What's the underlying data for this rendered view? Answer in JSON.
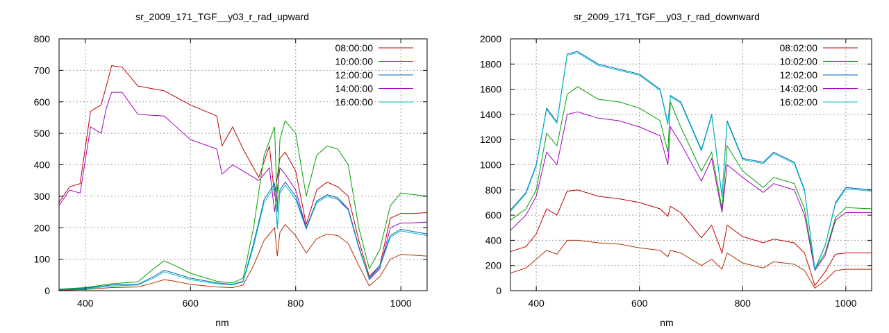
{
  "chart_data": [
    {
      "type": "line",
      "title": "sr_2009_171_TGF__y03_r_rad_upward",
      "xlabel": "nm",
      "ylabel": "",
      "xlim": [
        350,
        1050
      ],
      "ylim": [
        0,
        800
      ],
      "xticks": [
        400,
        600,
        800,
        1000
      ],
      "yticks": [
        0,
        100,
        200,
        300,
        400,
        500,
        600,
        700,
        800
      ],
      "grid": true,
      "legend_position": "top-right",
      "series": [
        {
          "name": "08:00:00",
          "color": "#c00000",
          "x": [
            350,
            370,
            390,
            410,
            430,
            440,
            450,
            470,
            500,
            550,
            600,
            650,
            660,
            680,
            700,
            730,
            750,
            760,
            770,
            780,
            800,
            820,
            840,
            860,
            880,
            900,
            920,
            940,
            960,
            980,
            1000,
            1020,
            1050
          ],
          "y": [
            280,
            330,
            340,
            570,
            590,
            650,
            715,
            710,
            650,
            635,
            590,
            555,
            460,
            520,
            450,
            360,
            460,
            300,
            420,
            440,
            380,
            210,
            320,
            345,
            330,
            300,
            160,
            45,
            80,
            230,
            245,
            245,
            248
          ]
        },
        {
          "name": "10:00:00",
          "color": "#00a000",
          "x": [
            350,
            400,
            450,
            500,
            530,
            550,
            570,
            600,
            650,
            680,
            700,
            720,
            740,
            760,
            765,
            770,
            780,
            800,
            820,
            840,
            860,
            880,
            900,
            920,
            940,
            960,
            980,
            1000,
            1050
          ],
          "y": [
            5,
            10,
            22,
            28,
            70,
            95,
            80,
            55,
            30,
            25,
            40,
            200,
            430,
            520,
            250,
            480,
            540,
            500,
            300,
            430,
            460,
            450,
            400,
            200,
            70,
            130,
            270,
            310,
            300
          ]
        },
        {
          "name": "12:00:00",
          "color": "#0060c0",
          "x": [
            350,
            400,
            450,
            500,
            530,
            550,
            570,
            600,
            650,
            680,
            700,
            720,
            740,
            760,
            765,
            770,
            780,
            800,
            820,
            840,
            860,
            880,
            900,
            920,
            940,
            960,
            980,
            1000,
            1050
          ],
          "y": [
            3,
            8,
            18,
            20,
            45,
            65,
            55,
            40,
            25,
            20,
            30,
            150,
            290,
            340,
            200,
            320,
            345,
            300,
            200,
            285,
            305,
            295,
            260,
            140,
            40,
            80,
            175,
            195,
            180
          ]
        },
        {
          "name": "14:00:00",
          "color": "#a000c0",
          "x": [
            350,
            370,
            390,
            410,
            430,
            440,
            450,
            470,
            500,
            550,
            600,
            650,
            660,
            680,
            700,
            730,
            750,
            760,
            770,
            780,
            800,
            820,
            840,
            860,
            880,
            900,
            920,
            940,
            960,
            980,
            1000,
            1020,
            1050
          ],
          "y": [
            270,
            320,
            310,
            520,
            500,
            580,
            630,
            630,
            560,
            555,
            480,
            450,
            370,
            400,
            380,
            350,
            390,
            250,
            390,
            370,
            320,
            200,
            280,
            300,
            290,
            260,
            140,
            35,
            70,
            200,
            215,
            215,
            218
          ]
        },
        {
          "name": "16:00:00",
          "color": "#00c0c0",
          "x": [
            350,
            400,
            450,
            500,
            530,
            550,
            570,
            600,
            650,
            680,
            700,
            720,
            740,
            760,
            765,
            770,
            780,
            800,
            820,
            840,
            860,
            880,
            900,
            920,
            940,
            960,
            980,
            1000,
            1050
          ],
          "y": [
            2,
            6,
            15,
            18,
            40,
            60,
            50,
            35,
            22,
            18,
            28,
            140,
            280,
            330,
            195,
            310,
            335,
            290,
            195,
            280,
            300,
            290,
            255,
            135,
            38,
            75,
            170,
            190,
            175
          ]
        },
        {
          "name": "",
          "color": "#b03000",
          "x": [
            350,
            400,
            450,
            500,
            530,
            550,
            570,
            600,
            650,
            680,
            700,
            720,
            740,
            760,
            765,
            770,
            780,
            800,
            820,
            840,
            860,
            880,
            900,
            920,
            940,
            960,
            980,
            1000,
            1050
          ],
          "y": [
            1,
            4,
            10,
            12,
            25,
            35,
            30,
            20,
            12,
            10,
            18,
            80,
            160,
            200,
            110,
            185,
            210,
            175,
            120,
            165,
            180,
            175,
            150,
            80,
            15,
            45,
            100,
            115,
            110
          ]
        }
      ]
    },
    {
      "type": "line",
      "title": "sr_2009_171_TGF__y03_r_rad_downward",
      "xlabel": "nm",
      "ylabel": "",
      "xlim": [
        350,
        1050
      ],
      "ylim": [
        0,
        2000
      ],
      "xticks": [
        400,
        600,
        800,
        1000
      ],
      "yticks": [
        0,
        200,
        400,
        600,
        800,
        1000,
        1200,
        1400,
        1600,
        1800,
        2000
      ],
      "grid": true,
      "legend_position": "top-right",
      "series": [
        {
          "name": "08:02:00",
          "color": "#c00000",
          "x": [
            350,
            380,
            400,
            420,
            440,
            460,
            480,
            520,
            560,
            600,
            640,
            655,
            660,
            680,
            720,
            740,
            760,
            770,
            800,
            840,
            860,
            900,
            920,
            940,
            960,
            980,
            1000,
            1050
          ],
          "y": [
            310,
            350,
            450,
            650,
            600,
            790,
            800,
            750,
            730,
            700,
            650,
            590,
            670,
            620,
            420,
            520,
            300,
            520,
            430,
            380,
            410,
            380,
            300,
            40,
            150,
            290,
            300,
            300
          ]
        },
        {
          "name": "10:02:00",
          "color": "#00a000",
          "x": [
            350,
            380,
            400,
            420,
            440,
            460,
            480,
            520,
            560,
            600,
            640,
            655,
            660,
            680,
            720,
            740,
            760,
            770,
            800,
            840,
            860,
            900,
            920,
            940,
            960,
            980,
            1000,
            1050
          ],
          "y": [
            560,
            650,
            800,
            1250,
            1150,
            1560,
            1620,
            1520,
            1500,
            1450,
            1350,
            1100,
            1500,
            1300,
            950,
            1100,
            650,
            1150,
            950,
            820,
            900,
            850,
            650,
            170,
            300,
            580,
            660,
            650
          ]
        },
        {
          "name": "12:02:00",
          "color": "#0060c0",
          "x": [
            350,
            380,
            400,
            420,
            440,
            460,
            480,
            520,
            560,
            600,
            640,
            655,
            660,
            680,
            720,
            740,
            760,
            770,
            800,
            840,
            860,
            900,
            920,
            940,
            960,
            980,
            1000,
            1050
          ],
          "y": [
            640,
            780,
            1000,
            1450,
            1340,
            1880,
            1900,
            1800,
            1760,
            1720,
            1600,
            1330,
            1550,
            1500,
            1120,
            1400,
            750,
            1350,
            1050,
            1020,
            1100,
            1020,
            800,
            170,
            360,
            700,
            820,
            800
          ]
        },
        {
          "name": "14:02:00",
          "color": "#a000c0",
          "x": [
            350,
            380,
            400,
            420,
            440,
            460,
            480,
            520,
            560,
            600,
            640,
            655,
            660,
            680,
            720,
            740,
            760,
            770,
            800,
            840,
            860,
            900,
            920,
            940,
            960,
            980,
            1000,
            1050
          ],
          "y": [
            480,
            600,
            750,
            1100,
            1000,
            1400,
            1420,
            1370,
            1350,
            1300,
            1230,
            1000,
            1300,
            1170,
            870,
            1050,
            620,
            1000,
            900,
            780,
            850,
            800,
            600,
            160,
            280,
            560,
            620,
            620
          ]
        },
        {
          "name": "16:02:00",
          "color": "#00c0c0",
          "x": [
            350,
            380,
            400,
            420,
            440,
            460,
            480,
            520,
            560,
            600,
            640,
            655,
            660,
            680,
            720,
            740,
            760,
            770,
            800,
            840,
            860,
            900,
            920,
            940,
            960,
            980,
            1000,
            1050
          ],
          "y": [
            630,
            770,
            990,
            1440,
            1330,
            1870,
            1890,
            1790,
            1750,
            1710,
            1590,
            1320,
            1540,
            1490,
            1110,
            1390,
            740,
            1340,
            1040,
            1010,
            1090,
            1010,
            790,
            165,
            355,
            690,
            810,
            790
          ]
        },
        {
          "name": "",
          "color": "#b03000",
          "x": [
            350,
            380,
            400,
            420,
            440,
            460,
            480,
            520,
            560,
            600,
            640,
            655,
            660,
            680,
            720,
            740,
            760,
            770,
            800,
            840,
            860,
            900,
            920,
            940,
            960,
            980,
            1000,
            1050
          ],
          "y": [
            140,
            180,
            250,
            320,
            290,
            400,
            400,
            380,
            370,
            340,
            320,
            270,
            320,
            300,
            200,
            250,
            170,
            300,
            220,
            180,
            230,
            210,
            160,
            20,
            80,
            160,
            170,
            170
          ]
        }
      ]
    }
  ]
}
